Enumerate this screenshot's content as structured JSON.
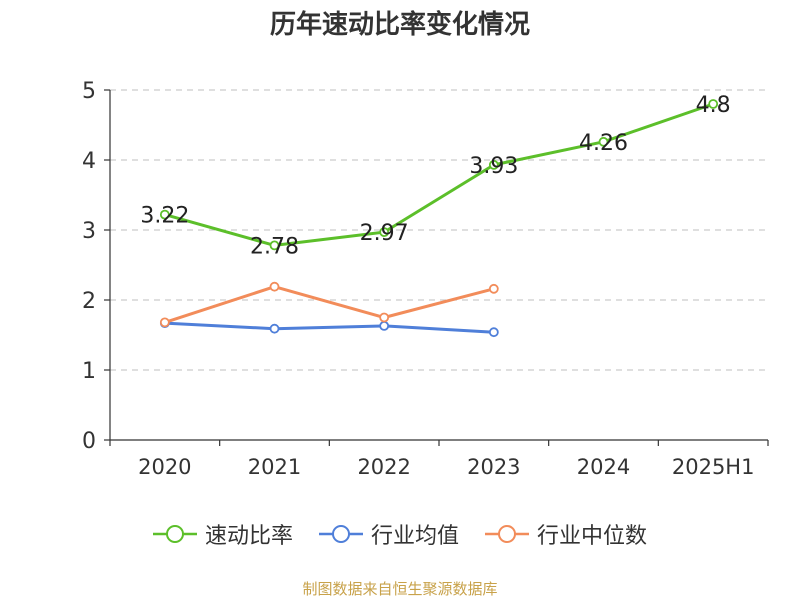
{
  "chart_data": {
    "type": "line",
    "title": "历年速动比率变化情况",
    "categories": [
      "2020",
      "2021",
      "2022",
      "2023",
      "2024",
      "2025H1"
    ],
    "ylim": [
      0,
      5
    ],
    "yticks": [
      0,
      1,
      2,
      3,
      4,
      5
    ],
    "grid": true,
    "legend_position": "bottom",
    "series": [
      {
        "name": "速动比率",
        "color": "#5cbf2a",
        "values": [
          3.22,
          2.78,
          2.97,
          3.93,
          4.26,
          4.8
        ],
        "labels": [
          "3.22",
          "2.78",
          "2.97",
          "3.93",
          "4.26",
          "4.8"
        ]
      },
      {
        "name": "行业均值",
        "color": "#4f7fd9",
        "values": [
          1.67,
          1.59,
          1.63,
          1.54,
          null,
          null
        ]
      },
      {
        "name": "行业中位数",
        "color": "#f28c5a",
        "values": [
          1.68,
          2.19,
          1.75,
          2.16,
          null,
          null
        ]
      }
    ],
    "source": "制图数据来自恒生聚源数据库"
  }
}
